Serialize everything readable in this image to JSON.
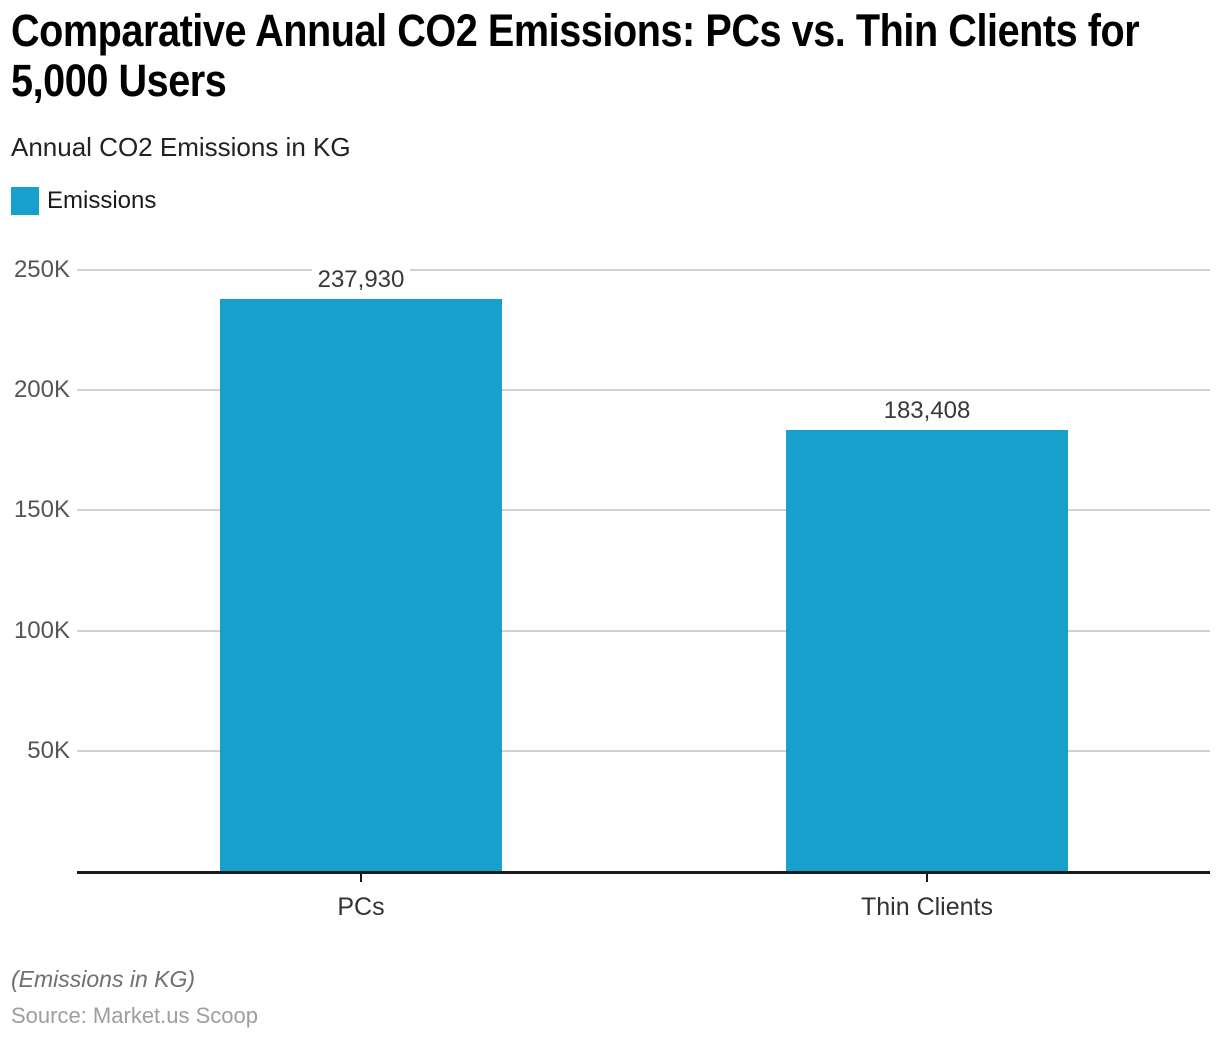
{
  "chart_data": {
    "type": "bar",
    "title": "Comparative Annual CO2 Emissions: PCs vs. Thin Clients for\n5,000 Users",
    "subtitle": "Annual CO2 Emissions in KG",
    "categories": [
      "PCs",
      "Thin Clients"
    ],
    "series": [
      {
        "name": "Emissions",
        "values": [
          237930,
          183408
        ],
        "color": "#18A0CC"
      }
    ],
    "value_labels": [
      "237,930",
      "183,408"
    ],
    "xlabel": "",
    "ylabel": "",
    "ylim": [
      0,
      250000
    ],
    "ytick_step": 50000,
    "ytick_labels": [
      "50K",
      "100K",
      "150K",
      "200K",
      "250K"
    ],
    "grid": true,
    "legend_position": "top-left"
  },
  "footer": {
    "note": "(Emissions in KG)",
    "source": "Source: Market.us Scoop"
  },
  "colors": {
    "bar": "#18A0CC",
    "gridline": "#D2D2D2",
    "axis": "#1A1A1A",
    "ytick_label": "#555555",
    "value_label": "#383838",
    "category_label": "#333333",
    "note": "#707070",
    "source": "#9E9E9E",
    "background": "#FFFFFF"
  }
}
